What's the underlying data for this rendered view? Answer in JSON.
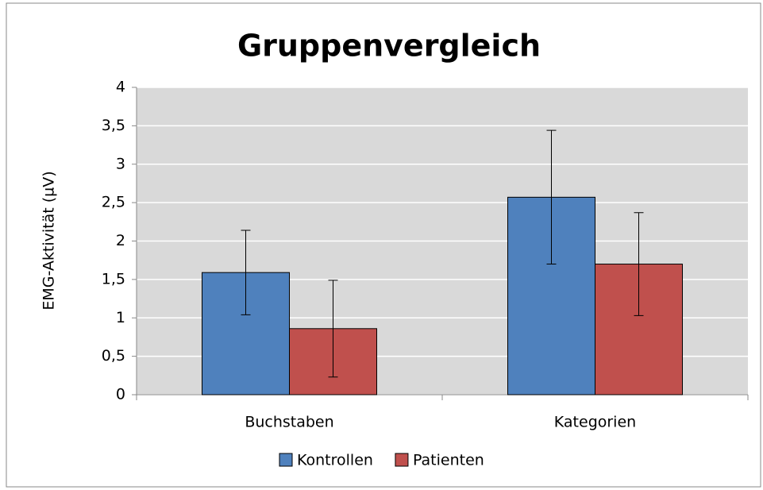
{
  "chart_data": {
    "type": "bar",
    "title": "Gruppenvergleich",
    "y_label": "EMG-Aktivität (µV)",
    "categories": [
      "Buchstaben",
      "Kategorien"
    ],
    "series": [
      {
        "name": "Kontrollen",
        "color": "#4f81bd",
        "values": [
          1.59,
          2.57
        ],
        "errors": [
          0.55,
          0.87
        ]
      },
      {
        "name": "Patienten",
        "color": "#c0504d",
        "values": [
          0.86,
          1.7
        ],
        "errors": [
          0.63,
          0.67
        ]
      }
    ],
    "ylim": [
      0,
      4
    ],
    "yticks": [
      0,
      {
        "value": 0.5,
        "label": "0,5"
      },
      1,
      {
        "value": 1.5,
        "label": "1,5"
      },
      2,
      {
        "value": 2.5,
        "label": "2,5"
      },
      3,
      {
        "value": 3.5,
        "label": "3,5"
      },
      4
    ],
    "grid": true,
    "legend": "bottom"
  }
}
